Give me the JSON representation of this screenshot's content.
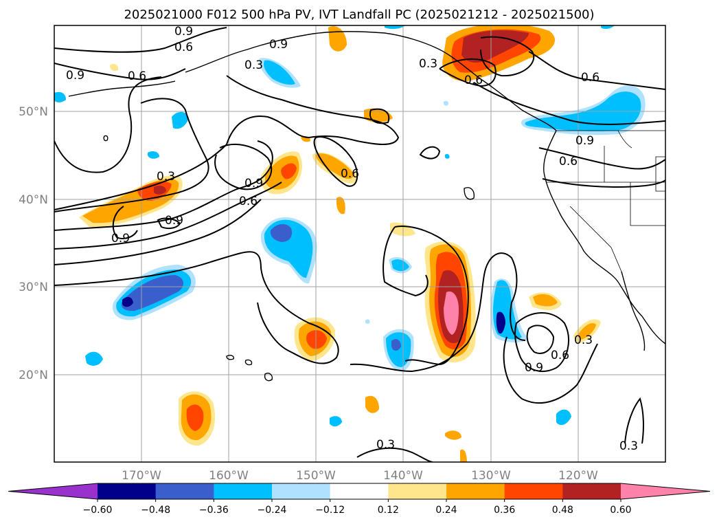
{
  "title": "2025021000 F012 500 hPa PV, IVT Landfall PC (2025021212 - 2025021500)",
  "lat_labels": [
    "50°N",
    "40°N",
    "30°N",
    "20°N"
  ],
  "lon_labels": [
    "170°W",
    "160°W",
    "150°W",
    "140°W",
    "130°W",
    "120°W"
  ],
  "colorbar": {
    "ticks": [
      "−0.60",
      "−0.48",
      "−0.36",
      "−0.24",
      "−0.12",
      "0.12",
      "0.24",
      "0.36",
      "0.48",
      "0.60"
    ],
    "colors": [
      "#9932cc",
      "#00008b",
      "#3a5fcd",
      "#00bfff",
      "#b0e2ff",
      "#ffffff",
      "#ffe68c",
      "#ffa500",
      "#ff4500",
      "#b22222",
      "#ff82ab"
    ]
  },
  "contour_labels": {
    "a": "0.9",
    "b": "0.6",
    "c": "0.9",
    "d": "0.6",
    "e": "0.3",
    "f": "0.3",
    "g": "0.6",
    "h": "0.6",
    "i": "0.9",
    "j": "0.6",
    "k": "0.3",
    "l": "0.9",
    "m": "0.9",
    "n": "0.6",
    "o": "0.6",
    "p": "0.9",
    "q": "0.9",
    "r": "0.6",
    "s": "0.3",
    "t": "0.3",
    "u": "0.3"
  }
}
